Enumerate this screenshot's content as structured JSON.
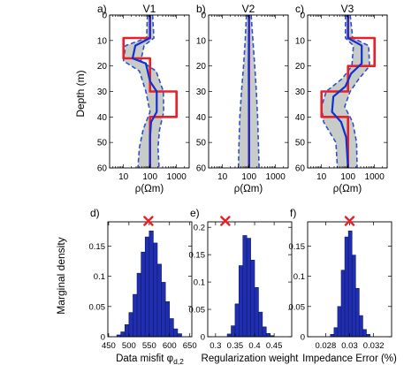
{
  "figure": {
    "profiles_ylabel": "Depth (m)",
    "hist_ylabel": "Marginal density"
  },
  "colors": {
    "band": "#c8ccc8",
    "dashed": "#3050c8",
    "mean": "#1030d0",
    "true": "#e8202a",
    "bars": "#1f2fb0",
    "marker": "#e8202a"
  },
  "chart_data": [
    {
      "type": "line",
      "panel_label": "a)",
      "title": "V1",
      "xlabel": "ρ(Ωm)",
      "ylabel": "Depth (m)",
      "x_scale": "log",
      "xlim": [
        3,
        3000
      ],
      "ylim": [
        0,
        60
      ],
      "x_ticks": [
        10,
        100,
        1000
      ],
      "x_tick_labels": [
        "10",
        "100",
        "1000"
      ],
      "y_ticks": [
        0,
        10,
        20,
        30,
        40,
        50,
        60
      ],
      "y_tick_labels": [
        "0",
        "10",
        "20",
        "30",
        "40",
        "50",
        "60"
      ],
      "series": [
        {
          "role": "true",
          "depth": [
            0,
            9,
            9,
            17,
            17,
            30,
            30,
            40,
            40,
            60
          ],
          "rho": [
            100,
            100,
            10,
            10,
            100,
            100,
            1000,
            1000,
            100,
            100
          ]
        },
        {
          "role": "mean",
          "depth": [
            0,
            9,
            12,
            17,
            19,
            26,
            30,
            38,
            42,
            48,
            60
          ],
          "rho": [
            100,
            100,
            28,
            22,
            70,
            100,
            180,
            180,
            110,
            100,
            100
          ]
        },
        {
          "role": "lower",
          "depth": [
            0,
            9,
            12,
            18,
            22,
            30,
            38,
            45,
            52,
            60
          ],
          "rho": [
            80,
            75,
            12,
            10,
            40,
            70,
            100,
            55,
            40,
            35
          ]
        },
        {
          "role": "upper",
          "depth": [
            0,
            9,
            12,
            18,
            22,
            30,
            38,
            45,
            52,
            60
          ],
          "rho": [
            125,
            140,
            60,
            45,
            170,
            320,
            330,
            230,
            200,
            220
          ]
        }
      ]
    },
    {
      "type": "line",
      "panel_label": "b)",
      "title": "V2",
      "xlabel": "ρ(Ωm)",
      "ylabel": "",
      "x_scale": "log",
      "xlim": [
        3,
        3000
      ],
      "ylim": [
        0,
        60
      ],
      "x_ticks": [
        10,
        100,
        1000
      ],
      "x_tick_labels": [
        "10",
        "100",
        "1000"
      ],
      "y_ticks": [
        0,
        10,
        20,
        30,
        40,
        50,
        60
      ],
      "y_tick_labels": [
        "0",
        "10",
        "20",
        "30",
        "40",
        "50",
        "60"
      ],
      "series": [
        {
          "role": "true",
          "depth": [
            0,
            60
          ],
          "rho": [
            100,
            100
          ]
        },
        {
          "role": "mean",
          "depth": [
            0,
            20,
            40,
            60
          ],
          "rho": [
            100,
            98,
            100,
            102
          ]
        },
        {
          "role": "lower",
          "depth": [
            0,
            10,
            20,
            30,
            40,
            50,
            60
          ],
          "rho": [
            80,
            72,
            62,
            52,
            45,
            42,
            40
          ]
        },
        {
          "role": "upper",
          "depth": [
            0,
            10,
            20,
            30,
            40,
            50,
            60
          ],
          "rho": [
            120,
            140,
            165,
            190,
            210,
            225,
            240
          ]
        }
      ]
    },
    {
      "type": "line",
      "panel_label": "c)",
      "title": "V3",
      "xlabel": "ρ(Ωm)",
      "ylabel": "",
      "x_scale": "log",
      "xlim": [
        3,
        3000
      ],
      "ylim": [
        0,
        60
      ],
      "x_ticks": [
        10,
        100,
        1000
      ],
      "x_tick_labels": [
        "10",
        "100",
        "1000"
      ],
      "y_ticks": [
        0,
        10,
        20,
        30,
        40,
        50,
        60
      ],
      "y_tick_labels": [
        "0",
        "10",
        "20",
        "30",
        "40",
        "50",
        "60"
      ],
      "series": [
        {
          "role": "true",
          "depth": [
            0,
            9,
            9,
            20,
            20,
            30,
            30,
            40,
            40,
            60
          ],
          "rho": [
            100,
            100,
            1000,
            1000,
            100,
            100,
            10,
            10,
            100,
            100
          ]
        },
        {
          "role": "mean",
          "depth": [
            0,
            9,
            12,
            19,
            23,
            28,
            32,
            38,
            42,
            48,
            60
          ],
          "rho": [
            100,
            100,
            330,
            330,
            130,
            80,
            28,
            25,
            55,
            85,
            100
          ]
        },
        {
          "role": "lower",
          "depth": [
            0,
            9,
            12,
            20,
            25,
            30,
            36,
            42,
            50,
            60
          ],
          "rho": [
            80,
            80,
            160,
            140,
            60,
            15,
            10,
            12,
            35,
            40
          ]
        },
        {
          "role": "upper",
          "depth": [
            0,
            9,
            12,
            20,
            25,
            30,
            36,
            42,
            50,
            60
          ],
          "rho": [
            120,
            150,
            600,
            650,
            260,
            120,
            75,
            150,
            210,
            220
          ]
        }
      ]
    },
    {
      "type": "bar",
      "panel_label": "d)",
      "xlabel": "Data misfit φd,2",
      "ylabel": "Marginal density",
      "xlim": [
        448,
        655
      ],
      "ylim": [
        0,
        0.19
      ],
      "x_ticks": [
        450,
        500,
        550,
        600,
        650
      ],
      "x_tick_labels": [
        "450",
        "500",
        "550",
        "600",
        "650"
      ],
      "y_ticks": [
        0,
        0.05,
        0.1,
        0.15
      ],
      "y_tick_labels": [
        "0",
        "0.05",
        "0.1",
        "0.15"
      ],
      "bin_width": 10,
      "bin_centers": [
        475,
        485,
        495,
        505,
        515,
        525,
        535,
        545,
        555,
        565,
        575,
        585,
        595,
        605,
        615,
        625
      ],
      "values": [
        0.003,
        0.008,
        0.02,
        0.04,
        0.07,
        0.105,
        0.14,
        0.165,
        0.175,
        0.155,
        0.12,
        0.09,
        0.058,
        0.03,
        0.013,
        0.005
      ],
      "marker_x": 548
    },
    {
      "type": "bar",
      "panel_label": "e)",
      "xlabel": "Regularization weight",
      "ylabel": "",
      "xlim": [
        0.28,
        0.495
      ],
      "ylim": [
        0,
        0.21
      ],
      "x_ticks": [
        0.3,
        0.35,
        0.4,
        0.45
      ],
      "x_tick_labels": [
        "0.3",
        "0.35",
        "0.4",
        "0.45"
      ],
      "y_ticks": [
        0,
        0.05,
        0.1,
        0.15,
        0.2
      ],
      "y_tick_labels": [
        "0",
        "0.05",
        "0.1",
        "0.15",
        "0.2"
      ],
      "bin_width": 0.01,
      "bin_centers": [
        0.335,
        0.345,
        0.355,
        0.365,
        0.375,
        0.385,
        0.395,
        0.405,
        0.415,
        0.425,
        0.435,
        0.445
      ],
      "values": [
        0.005,
        0.02,
        0.06,
        0.13,
        0.185,
        0.18,
        0.14,
        0.09,
        0.045,
        0.018,
        0.006,
        0.002
      ],
      "marker_x": 0.325
    },
    {
      "type": "bar",
      "panel_label": "f)",
      "xlabel": "Impedance Error (%)",
      "ylabel": "",
      "xlim": [
        0.0265,
        0.0335
      ],
      "ylim": [
        0,
        0.19
      ],
      "x_ticks": [
        0.028,
        0.03,
        0.032
      ],
      "x_tick_labels": [
        "0.028",
        "0.03",
        "0.032"
      ],
      "y_ticks": [
        0,
        0.05,
        0.1,
        0.15
      ],
      "y_tick_labels": [
        "0",
        "0.05",
        "0.1",
        "0.15"
      ],
      "bin_width": 0.0003,
      "bin_centers": [
        0.02855,
        0.02885,
        0.02915,
        0.02945,
        0.02975,
        0.03005,
        0.03035,
        0.03065,
        0.03095,
        0.03125,
        0.03155
      ],
      "values": [
        0.004,
        0.015,
        0.05,
        0.11,
        0.165,
        0.175,
        0.135,
        0.08,
        0.035,
        0.012,
        0.004
      ],
      "marker_x": 0.03
    }
  ]
}
